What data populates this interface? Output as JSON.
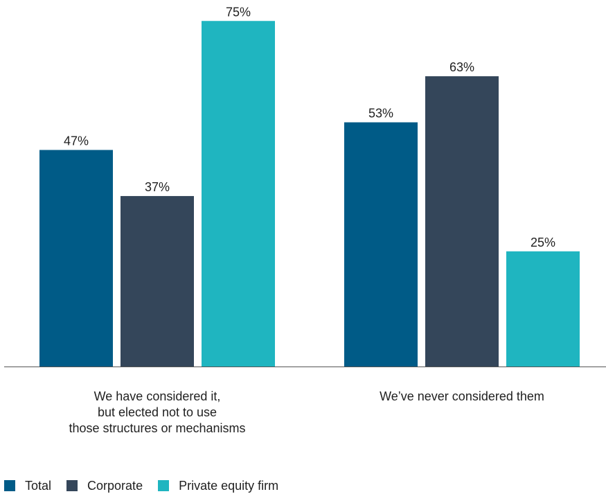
{
  "chart_data": {
    "type": "bar",
    "title": "",
    "xlabel": "",
    "ylabel": "",
    "ylim": [
      0,
      80
    ],
    "grid": false,
    "legend_position": "bottom-left",
    "value_suffix": "%",
    "categories": [
      [
        "We have considered it,",
        "but elected not to use",
        "those structures or mechanisms"
      ],
      [
        "We’ve never considered them"
      ]
    ],
    "series": [
      {
        "name": "Total",
        "color": "#005b87",
        "values": [
          47,
          53
        ]
      },
      {
        "name": "Corporate",
        "color": "#34465a",
        "values": [
          37,
          63
        ]
      },
      {
        "name": "Private equity firm",
        "color": "#1fb5c0",
        "values": [
          75,
          25
        ]
      }
    ]
  }
}
